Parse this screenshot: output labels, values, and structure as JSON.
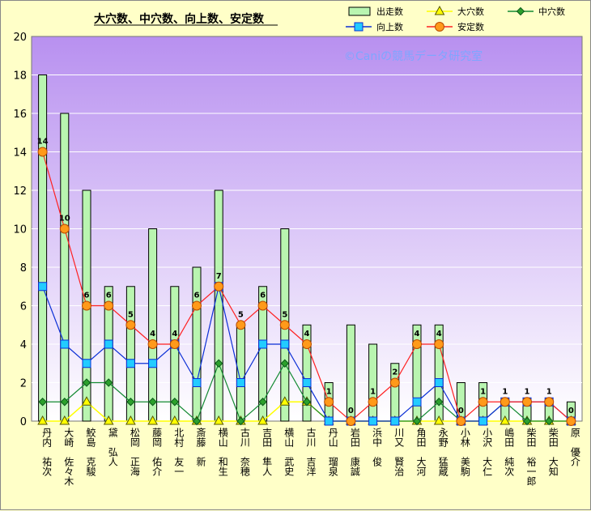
{
  "chart_data": {
    "type": "bar",
    "title": "大穴数、中穴数、向上数、安定数",
    "watermark": "©Caniの競馬データ研究室",
    "ylim": [
      0,
      20
    ],
    "yticks": [
      0,
      2,
      4,
      6,
      8,
      10,
      12,
      14,
      16,
      18,
      20
    ],
    "grid": true,
    "legend_position": "top-right",
    "categories": [
      "丹内 祐次",
      "大崎 佐々木",
      "鮫島 克駿",
      "黛 弘人",
      "松岡 正海",
      "藤岡 佑介",
      "北村 友一",
      "斎藤 新",
      "横山 和生",
      "古川 奈穂",
      "吉田 隼人",
      "横山 武史",
      "古川 吉洋",
      "丹山 瑠泉",
      "岩田 康誠",
      "浜中 俊",
      "川又 賢治",
      "角田 大河",
      "永野 猛蔵",
      "小林 美駒",
      "小沢 大仁",
      "嶋田 純次",
      "柴田 裕一郎",
      "柴田 大知",
      "原 優介"
    ],
    "series": [
      {
        "name": "出走数",
        "kind": "bar",
        "color": "#b9f5b0",
        "values": [
          18,
          16,
          12,
          7,
          7,
          10,
          7,
          8,
          12,
          5,
          7,
          10,
          5,
          2,
          5,
          4,
          3,
          5,
          5,
          2,
          2,
          1,
          1,
          1,
          1
        ]
      },
      {
        "name": "大穴数",
        "kind": "line",
        "color": "#ffff00",
        "values": [
          0,
          0,
          1,
          0,
          0,
          0,
          0,
          0,
          0,
          0,
          0,
          1,
          1,
          0,
          0,
          0,
          0,
          0,
          0,
          0,
          0,
          0,
          0,
          0,
          0
        ]
      },
      {
        "name": "中穴数",
        "kind": "line",
        "color": "#138a32",
        "values": [
          1,
          1,
          2,
          2,
          1,
          1,
          1,
          0,
          3,
          0,
          1,
          3,
          1,
          0,
          0,
          0,
          0,
          0,
          1,
          0,
          0,
          1,
          0,
          0,
          0
        ]
      },
      {
        "name": "向上数",
        "kind": "line",
        "color": "#0b2fd6",
        "values": [
          7,
          4,
          3,
          4,
          3,
          3,
          4,
          2,
          7,
          2,
          4,
          4,
          2,
          0,
          0,
          0,
          0,
          1,
          2,
          0,
          0,
          1,
          1,
          1,
          0
        ]
      },
      {
        "name": "安定数",
        "kind": "line",
        "color": "#ff2020",
        "values": [
          14,
          10,
          6,
          6,
          5,
          4,
          4,
          6,
          7,
          5,
          6,
          5,
          4,
          1,
          0,
          1,
          2,
          4,
          4,
          0,
          1,
          1,
          1,
          1,
          0
        ]
      }
    ]
  }
}
